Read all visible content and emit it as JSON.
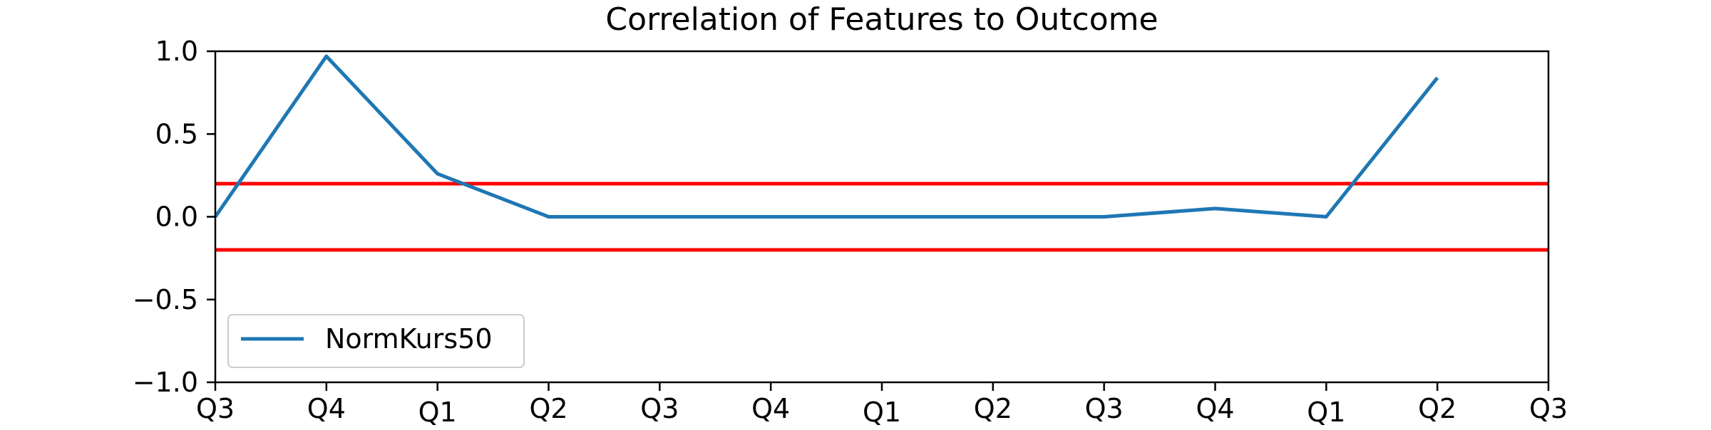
{
  "chart_data": {
    "type": "line",
    "title": "Correlation of Features to Outcome",
    "xlabel": "",
    "ylabel": "",
    "x": [
      "Q3",
      "Q4",
      "Q1",
      "Q2",
      "Q3",
      "Q4",
      "Q1",
      "Q2",
      "Q3",
      "Q4",
      "Q1",
      "Q2",
      "Q3"
    ],
    "ylim": [
      -1.0,
      1.0
    ],
    "y_ticks": [
      "1.0",
      "0.5",
      "0.0",
      "−0.5",
      "−1.0"
    ],
    "grid": false,
    "legend_position": "lower-left",
    "series": [
      {
        "name": "NormKurs50",
        "color": "#1f77b4",
        "values": [
          0.0,
          0.97,
          0.26,
          0.0,
          0.0,
          0.0,
          0.0,
          0.0,
          0.0,
          0.05,
          0.0,
          0.84,
          null
        ]
      }
    ],
    "threshold_lines": [
      {
        "value": 0.2,
        "color": "#ff0000"
      },
      {
        "value": -0.2,
        "color": "#ff0000"
      }
    ]
  }
}
